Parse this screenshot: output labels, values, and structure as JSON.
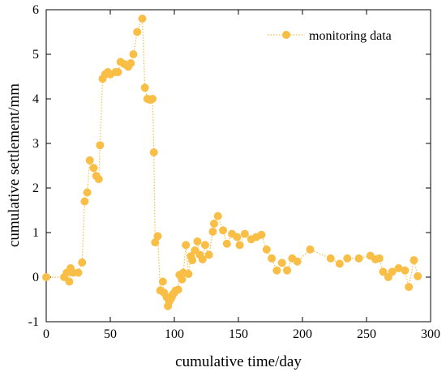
{
  "chart_data": {
    "type": "line",
    "xlabel": "cumulative time/day",
    "ylabel": "cumulative settlement/mm",
    "xlim": [
      0,
      300
    ],
    "ylim": [
      -1,
      6
    ],
    "xticks": [
      0,
      50,
      100,
      150,
      200,
      250,
      300
    ],
    "yticks": [
      -1,
      0,
      1,
      2,
      3,
      4,
      5,
      6
    ],
    "grid": false,
    "legend_position": "top-right",
    "line_style": "dotted",
    "marker": "circle",
    "color": "#F8BE45",
    "series": [
      {
        "name": "monitoring data",
        "points": [
          [
            0,
            0.0
          ],
          [
            14,
            0.0
          ],
          [
            16,
            0.1
          ],
          [
            18,
            -0.1
          ],
          [
            19,
            0.2
          ],
          [
            21,
            0.1
          ],
          [
            25,
            0.1
          ],
          [
            28,
            0.33
          ],
          [
            30,
            1.7
          ],
          [
            32,
            1.9
          ],
          [
            34,
            2.62
          ],
          [
            37,
            2.45
          ],
          [
            39,
            2.27
          ],
          [
            41,
            2.2
          ],
          [
            42,
            2.96
          ],
          [
            44,
            4.45
          ],
          [
            46,
            4.55
          ],
          [
            48,
            4.6
          ],
          [
            50,
            4.55
          ],
          [
            54,
            4.6
          ],
          [
            56,
            4.6
          ],
          [
            58,
            4.83
          ],
          [
            61,
            4.78
          ],
          [
            64,
            4.72
          ],
          [
            66,
            4.8
          ],
          [
            68,
            5.0
          ],
          [
            71,
            5.5
          ],
          [
            75,
            5.8
          ],
          [
            77,
            4.25
          ],
          [
            79,
            4.0
          ],
          [
            81,
            3.98
          ],
          [
            83,
            4.0
          ],
          [
            84,
            2.8
          ],
          [
            85,
            0.78
          ],
          [
            87,
            0.92
          ],
          [
            89,
            -0.3
          ],
          [
            91,
            -0.1
          ],
          [
            92,
            -0.35
          ],
          [
            94,
            -0.45
          ],
          [
            95,
            -0.65
          ],
          [
            96,
            -0.55
          ],
          [
            97,
            -0.5
          ],
          [
            98,
            -0.45
          ],
          [
            99,
            -0.38
          ],
          [
            100,
            -0.35
          ],
          [
            101,
            -0.3
          ],
          [
            103,
            -0.28
          ],
          [
            104,
            0.05
          ],
          [
            106,
            -0.05
          ],
          [
            107,
            0.1
          ],
          [
            109,
            0.72
          ],
          [
            111,
            0.07
          ],
          [
            113,
            0.47
          ],
          [
            114,
            0.38
          ],
          [
            116,
            0.6
          ],
          [
            118,
            0.8
          ],
          [
            120,
            0.5
          ],
          [
            122,
            0.4
          ],
          [
            124,
            0.72
          ],
          [
            127,
            0.5
          ],
          [
            130,
            1.02
          ],
          [
            131,
            1.2
          ],
          [
            134,
            1.37
          ],
          [
            138,
            1.05
          ],
          [
            141,
            0.75
          ],
          [
            145,
            0.97
          ],
          [
            149,
            0.9
          ],
          [
            151,
            0.72
          ],
          [
            155,
            0.97
          ],
          [
            160,
            0.85
          ],
          [
            164,
            0.9
          ],
          [
            168,
            0.95
          ],
          [
            172,
            0.62
          ],
          [
            176,
            0.42
          ],
          [
            180,
            0.15
          ],
          [
            184,
            0.32
          ],
          [
            188,
            0.15
          ],
          [
            192,
            0.42
          ],
          [
            196,
            0.35
          ],
          [
            206,
            0.62
          ],
          [
            222,
            0.42
          ],
          [
            229,
            0.3
          ],
          [
            235,
            0.42
          ],
          [
            244,
            0.42
          ],
          [
            253,
            0.48
          ],
          [
            257,
            0.4
          ],
          [
            260,
            0.42
          ],
          [
            263,
            0.12
          ],
          [
            267,
            0.0
          ],
          [
            270,
            0.12
          ],
          [
            275,
            0.2
          ],
          [
            280,
            0.15
          ],
          [
            283,
            -0.22
          ],
          [
            287,
            0.38
          ],
          [
            290,
            0.02
          ]
        ]
      }
    ]
  }
}
